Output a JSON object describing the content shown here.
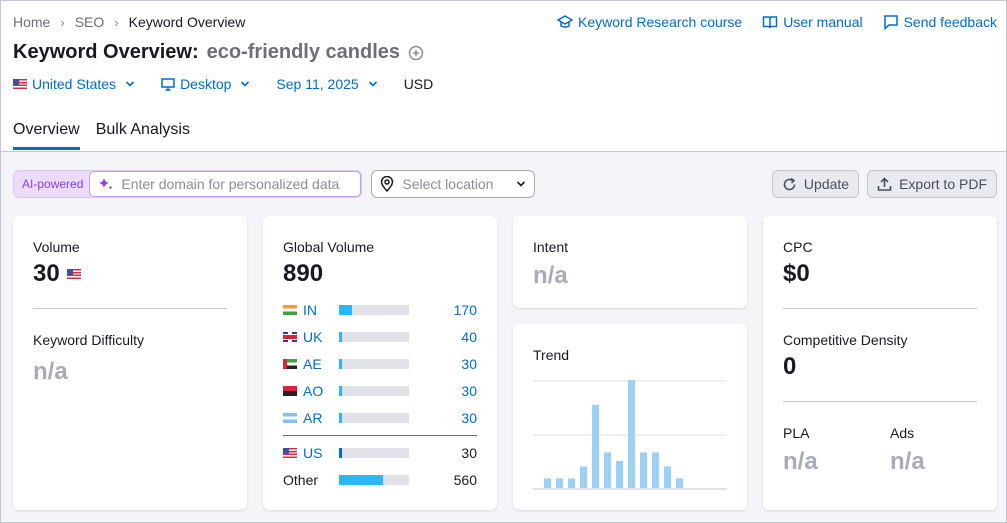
{
  "breadcrumb": [
    "Home",
    "SEO",
    "Keyword Overview"
  ],
  "top_links": {
    "course": "Keyword Research course",
    "manual": "User manual",
    "feedback": "Send feedback"
  },
  "title": {
    "prefix": "Keyword Overview:",
    "keyword": "eco-friendly candles"
  },
  "filters": {
    "country": "United States",
    "device": "Desktop",
    "date": "Sep 11, 2025",
    "currency": "USD"
  },
  "tabs": [
    "Overview",
    "Bulk Analysis"
  ],
  "toolbar": {
    "ai_label": "AI-powered",
    "domain_placeholder": "Enter domain for personalized data",
    "location_placeholder": "Select location",
    "update": "Update",
    "export": "Export to PDF"
  },
  "volume": {
    "label": "Volume",
    "value": "30"
  },
  "keyword_difficulty": {
    "label": "Keyword Difficulty",
    "value": "n/a"
  },
  "global_volume": {
    "label": "Global Volume",
    "value": "890",
    "countries": [
      {
        "code": "IN",
        "value": "170",
        "fraction": 0.19
      },
      {
        "code": "UK",
        "value": "40",
        "fraction": 0.045
      },
      {
        "code": "AE",
        "value": "30",
        "fraction": 0.034
      },
      {
        "code": "AO",
        "value": "30",
        "fraction": 0.034
      },
      {
        "code": "AR",
        "value": "30",
        "fraction": 0.034
      }
    ],
    "home": {
      "code": "US",
      "value": "30",
      "fraction": 0.034
    },
    "other": {
      "label": "Other",
      "value": "560",
      "fraction": 0.63
    }
  },
  "intent": {
    "label": "Intent",
    "value": "n/a"
  },
  "trend": {
    "label": "Trend",
    "values": [
      0.09,
      0.09,
      0.09,
      0.2,
      0.77,
      0.33,
      0.25,
      1.0,
      0.33,
      0.33,
      0.2,
      0.09
    ]
  },
  "cpc": {
    "label": "CPC",
    "value": "$0"
  },
  "competitive_density": {
    "label": "Competitive Density",
    "value": "0"
  },
  "pla": {
    "label": "PLA",
    "value": "n/a"
  },
  "ads": {
    "label": "Ads",
    "value": "n/a"
  },
  "colors": {
    "link": "#006dca",
    "bar": "#2bb7f5",
    "trend_bar": "#9cd0f5",
    "ai": "#8a3ff0"
  }
}
